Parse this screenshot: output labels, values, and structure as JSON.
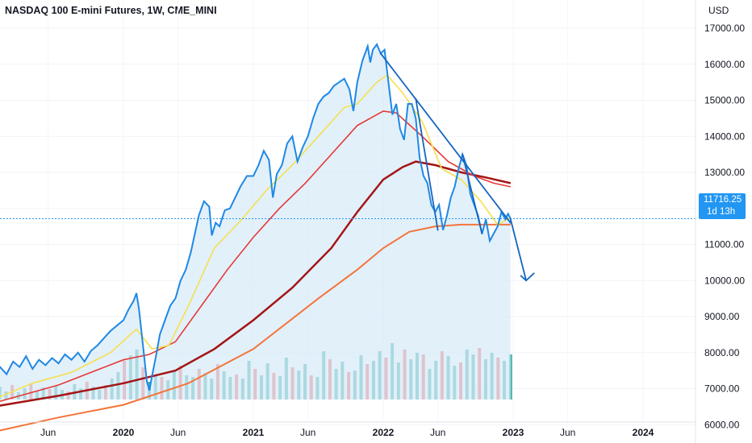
{
  "title": "NASDAQ 100 E-mini Futures, 1W, CME_MINI",
  "currency": "USD",
  "current_price": {
    "value": "11716.25",
    "countdown": "1d 13h"
  },
  "colors": {
    "price": "#1e88e5",
    "ema_fast": "#f4e04d",
    "ema_mid": "#e53935",
    "ema_slow": "#a31515",
    "ema_long": "#f4743b",
    "trend": "#1565c0",
    "vol_up": "#26a69a",
    "vol_down": "#ef5350",
    "fill": "#d6eaf8"
  },
  "chart_data": {
    "type": "line",
    "title": "NASDAQ 100 E-mini Futures, 1W, CME_MINI",
    "ylabel": "USD",
    "ylim": [
      5000,
      17500
    ],
    "yticks": [
      "17000.00",
      "16000.00",
      "15000.00",
      "14000.00",
      "13000.00",
      "12000.00",
      "11000.00",
      "10000.00",
      "9000.00",
      "8000.00",
      "7000.00",
      "6000.00"
    ],
    "ytick_values": [
      17000,
      16000,
      15000,
      14000,
      13000,
      12000,
      11000,
      10000,
      9000,
      8000,
      7000,
      6000
    ],
    "xticks": [
      {
        "label": "Jun",
        "t": 2019.42,
        "year": false
      },
      {
        "label": "2020",
        "t": 2020.0,
        "year": true
      },
      {
        "label": "Jun",
        "t": 2020.42,
        "year": false
      },
      {
        "label": "2021",
        "t": 2021.0,
        "year": true
      },
      {
        "label": "Jun",
        "t": 2021.42,
        "year": false
      },
      {
        "label": "2022",
        "t": 2022.0,
        "year": true
      },
      {
        "label": "Jun",
        "t": 2022.42,
        "year": false
      },
      {
        "label": "2023",
        "t": 2023.0,
        "year": true
      },
      {
        "label": "Jun",
        "t": 2023.42,
        "year": false
      },
      {
        "label": "2024",
        "t": 2024.0,
        "year": true
      }
    ],
    "price": [
      [
        2019.0,
        7300
      ],
      [
        2019.05,
        7600
      ],
      [
        2019.1,
        7400
      ],
      [
        2019.15,
        7750
      ],
      [
        2019.2,
        7600
      ],
      [
        2019.25,
        7900
      ],
      [
        2019.3,
        7550
      ],
      [
        2019.35,
        7800
      ],
      [
        2019.4,
        7650
      ],
      [
        2019.45,
        7850
      ],
      [
        2019.5,
        7700
      ],
      [
        2019.55,
        7950
      ],
      [
        2019.6,
        7800
      ],
      [
        2019.65,
        8000
      ],
      [
        2019.7,
        7750
      ],
      [
        2019.75,
        8050
      ],
      [
        2019.8,
        8200
      ],
      [
        2019.85,
        8400
      ],
      [
        2019.9,
        8600
      ],
      [
        2019.95,
        8750
      ],
      [
        2020.0,
        8900
      ],
      [
        2020.04,
        9200
      ],
      [
        2020.08,
        9450
      ],
      [
        2020.1,
        9650
      ],
      [
        2020.12,
        9200
      ],
      [
        2020.15,
        8200
      ],
      [
        2020.18,
        7200
      ],
      [
        2020.2,
        6950
      ],
      [
        2020.22,
        7350
      ],
      [
        2020.25,
        7900
      ],
      [
        2020.28,
        8500
      ],
      [
        2020.32,
        8900
      ],
      [
        2020.36,
        9300
      ],
      [
        2020.4,
        9500
      ],
      [
        2020.44,
        10000
      ],
      [
        2020.48,
        10300
      ],
      [
        2020.52,
        10800
      ],
      [
        2020.55,
        11300
      ],
      [
        2020.58,
        11800
      ],
      [
        2020.62,
        12200
      ],
      [
        2020.66,
        12050
      ],
      [
        2020.68,
        11250
      ],
      [
        2020.71,
        11600
      ],
      [
        2020.74,
        11500
      ],
      [
        2020.78,
        11950
      ],
      [
        2020.82,
        12000
      ],
      [
        2020.86,
        12300
      ],
      [
        2020.9,
        12600
      ],
      [
        2020.95,
        12900
      ],
      [
        2021.0,
        12900
      ],
      [
        2021.04,
        13200
      ],
      [
        2021.08,
        13600
      ],
      [
        2021.12,
        13350
      ],
      [
        2021.15,
        12300
      ],
      [
        2021.18,
        12950
      ],
      [
        2021.22,
        13200
      ],
      [
        2021.26,
        13800
      ],
      [
        2021.3,
        14000
      ],
      [
        2021.34,
        13300
      ],
      [
        2021.38,
        13700
      ],
      [
        2021.42,
        14000
      ],
      [
        2021.46,
        14500
      ],
      [
        2021.5,
        14900
      ],
      [
        2021.54,
        15100
      ],
      [
        2021.58,
        15200
      ],
      [
        2021.62,
        15400
      ],
      [
        2021.66,
        15500
      ],
      [
        2021.7,
        15600
      ],
      [
        2021.74,
        15300
      ],
      [
        2021.77,
        14700
      ],
      [
        2021.8,
        15500
      ],
      [
        2021.84,
        16100
      ],
      [
        2021.88,
        16500
      ],
      [
        2021.9,
        16050
      ],
      [
        2021.92,
        16400
      ],
      [
        2021.95,
        16550
      ],
      [
        2021.98,
        16300
      ],
      [
        2022.01,
        16400
      ],
      [
        2022.04,
        15500
      ],
      [
        2022.07,
        14600
      ],
      [
        2022.1,
        14900
      ],
      [
        2022.13,
        14200
      ],
      [
        2022.16,
        13900
      ],
      [
        2022.19,
        14900
      ],
      [
        2022.22,
        14900
      ],
      [
        2022.25,
        14500
      ],
      [
        2022.28,
        13400
      ],
      [
        2022.31,
        12900
      ],
      [
        2022.34,
        12700
      ],
      [
        2022.37,
        12100
      ],
      [
        2022.4,
        11900
      ],
      [
        2022.43,
        12100
      ],
      [
        2022.46,
        11400
      ],
      [
        2022.49,
        11800
      ],
      [
        2022.52,
        12300
      ],
      [
        2022.55,
        12600
      ],
      [
        2022.58,
        13100
      ],
      [
        2022.61,
        13500
      ],
      [
        2022.64,
        13200
      ],
      [
        2022.67,
        12400
      ],
      [
        2022.7,
        12100
      ],
      [
        2022.73,
        11800
      ],
      [
        2022.76,
        11300
      ],
      [
        2022.79,
        11700
      ],
      [
        2022.82,
        11100
      ],
      [
        2022.85,
        11300
      ],
      [
        2022.88,
        11500
      ],
      [
        2022.91,
        11900
      ],
      [
        2022.94,
        11700
      ],
      [
        2022.96,
        11850
      ],
      [
        2022.98,
        11716
      ]
    ],
    "ema_fast": [
      [
        2019.0,
        6700
      ],
      [
        2019.3,
        7150
      ],
      [
        2019.6,
        7450
      ],
      [
        2019.9,
        8000
      ],
      [
        2020.1,
        8650
      ],
      [
        2020.22,
        8100
      ],
      [
        2020.35,
        8200
      ],
      [
        2020.5,
        9300
      ],
      [
        2020.7,
        10900
      ],
      [
        2020.9,
        11650
      ],
      [
        2021.1,
        12500
      ],
      [
        2021.3,
        13200
      ],
      [
        2021.5,
        14000
      ],
      [
        2021.7,
        14800
      ],
      [
        2021.8,
        14900
      ],
      [
        2021.95,
        15500
      ],
      [
        2022.03,
        15700
      ],
      [
        2022.15,
        15200
      ],
      [
        2022.3,
        14400
      ],
      [
        2022.45,
        13100
      ],
      [
        2022.6,
        12800
      ],
      [
        2022.75,
        12200
      ],
      [
        2022.88,
        11550
      ],
      [
        2022.98,
        11750
      ]
    ],
    "ema_mid": [
      [
        2019.0,
        6600
      ],
      [
        2019.5,
        7100
      ],
      [
        2020.0,
        7800
      ],
      [
        2020.2,
        7950
      ],
      [
        2020.4,
        8300
      ],
      [
        2020.6,
        9300
      ],
      [
        2020.8,
        10300
      ],
      [
        2021.0,
        11200
      ],
      [
        2021.2,
        12000
      ],
      [
        2021.4,
        12700
      ],
      [
        2021.6,
        13500
      ],
      [
        2021.8,
        14300
      ],
      [
        2022.0,
        14700
      ],
      [
        2022.1,
        14650
      ],
      [
        2022.3,
        14000
      ],
      [
        2022.5,
        13300
      ],
      [
        2022.7,
        12900
      ],
      [
        2022.85,
        12700
      ],
      [
        2022.98,
        12600
      ]
    ],
    "ema_slow": [
      [
        2019.0,
        6500
      ],
      [
        2019.5,
        6800
      ],
      [
        2020.0,
        7150
      ],
      [
        2020.4,
        7500
      ],
      [
        2020.7,
        8100
      ],
      [
        2021.0,
        8900
      ],
      [
        2021.3,
        9800
      ],
      [
        2021.6,
        10900
      ],
      [
        2021.8,
        11900
      ],
      [
        2022.0,
        12800
      ],
      [
        2022.15,
        13150
      ],
      [
        2022.25,
        13300
      ],
      [
        2022.4,
        13200
      ],
      [
        2022.6,
        13000
      ],
      [
        2022.8,
        12850
      ],
      [
        2022.98,
        12700
      ]
    ],
    "ema_long": [
      [
        2019.0,
        5800
      ],
      [
        2019.5,
        6200
      ],
      [
        2020.0,
        6550
      ],
      [
        2020.5,
        7150
      ],
      [
        2021.0,
        8100
      ],
      [
        2021.5,
        9500
      ],
      [
        2021.8,
        10300
      ],
      [
        2022.0,
        10900
      ],
      [
        2022.2,
        11350
      ],
      [
        2022.4,
        11500
      ],
      [
        2022.6,
        11550
      ],
      [
        2022.8,
        11550
      ],
      [
        2022.98,
        11550
      ]
    ],
    "trend_lines": [
      [
        [
          2021.98,
          16300
        ],
        [
          2022.98,
          11600
        ]
      ],
      [
        [
          2022.25,
          15050
        ],
        [
          2022.42,
          11400
        ]
      ],
      [
        [
          2022.61,
          13500
        ],
        [
          2022.76,
          11300
        ]
      ],
      [
        [
          2022.98,
          11700
        ],
        [
          2023.1,
          10000
        ]
      ],
      [
        [
          2023.1,
          10000
        ],
        [
          2023.16,
          10200
        ]
      ],
      [
        [
          2023.1,
          10000
        ],
        [
          2023.06,
          10130
        ]
      ]
    ],
    "volume_heights": [
      12,
      16,
      10,
      18,
      9,
      14,
      20,
      11,
      15,
      13,
      17,
      12,
      10,
      19,
      14,
      22,
      16,
      12,
      18,
      26,
      34,
      48,
      55,
      62,
      40,
      22,
      30,
      28,
      24,
      36,
      42,
      30,
      28,
      38,
      33,
      26,
      44,
      35,
      28,
      31,
      26,
      48,
      38,
      30,
      45,
      33,
      29,
      52,
      40,
      36,
      44,
      30,
      28,
      60,
      50,
      38,
      47,
      34,
      36,
      55,
      44,
      48,
      60,
      52,
      70,
      46,
      62,
      50,
      58,
      56,
      38,
      48,
      60,
      54,
      42,
      46,
      62,
      56,
      64,
      50,
      58,
      52,
      48,
      56
    ]
  }
}
